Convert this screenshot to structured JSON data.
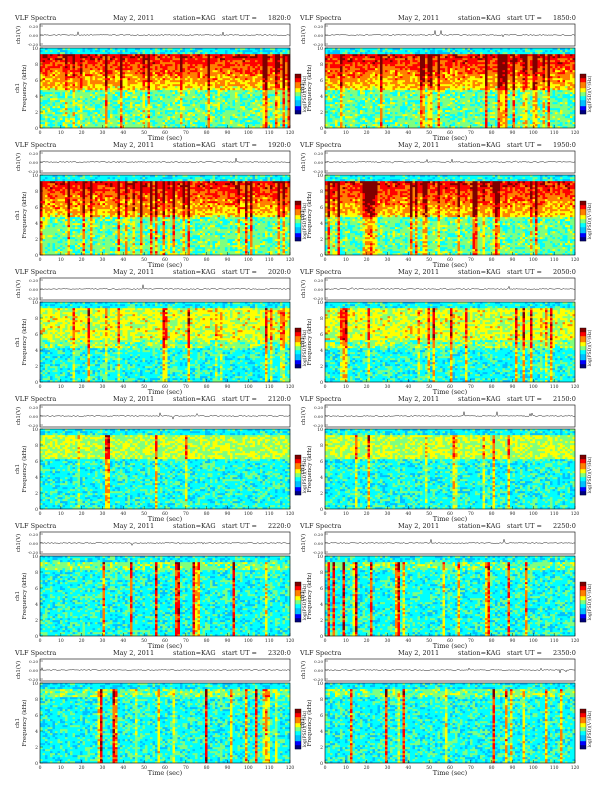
{
  "panel_label": "VLF Spectra",
  "date": "May 2, 2011",
  "station": "station=KAG",
  "start_prefix": "start UT =",
  "ch_label": "ch1(V)",
  "ytitle_top": "ch1",
  "ytitle_bottom": "Frequency (kHz)",
  "xlabel": "Time (sec)",
  "colorbar_label": "log(PSD)(V²/Hz)",
  "amp_ticks": [
    "0.20",
    "0.00",
    "-0.20"
  ],
  "freq_ticks": [
    "0",
    "2",
    "4",
    "6",
    "8",
    "10"
  ],
  "time_ticks": [
    "0",
    "10",
    "20",
    "30",
    "40",
    "50",
    "60",
    "70",
    "80",
    "90",
    "100",
    "110",
    "120"
  ],
  "colormap": [
    "#00007f",
    "#0000ff",
    "#00bfff",
    "#00ffff",
    "#7fff7f",
    "#ffff00",
    "#ff7f00",
    "#ff0000",
    "#7f0000"
  ],
  "chart_data": [
    {
      "type": "heatmap",
      "start_ut": "1820:0",
      "xlim": [
        0,
        120
      ],
      "ylim": [
        0,
        10
      ],
      "ylim_amp": [
        -0.2,
        0.2
      ],
      "activity": "high"
    },
    {
      "type": "heatmap",
      "start_ut": "1850:0",
      "xlim": [
        0,
        120
      ],
      "ylim": [
        0,
        10
      ],
      "ylim_amp": [
        -0.2,
        0.2
      ],
      "activity": "high"
    },
    {
      "type": "heatmap",
      "start_ut": "1920:0",
      "xlim": [
        0,
        120
      ],
      "ylim": [
        0,
        10
      ],
      "ylim_amp": [
        -0.2,
        0.2
      ],
      "activity": "high"
    },
    {
      "type": "heatmap",
      "start_ut": "1950:0",
      "xlim": [
        0,
        120
      ],
      "ylim": [
        0,
        10
      ],
      "ylim_amp": [
        -0.2,
        0.2
      ],
      "activity": "high"
    },
    {
      "type": "heatmap",
      "start_ut": "2020:0",
      "xlim": [
        0,
        120
      ],
      "ylim": [
        0,
        10
      ],
      "ylim_amp": [
        -0.2,
        0.2
      ],
      "activity": "medium"
    },
    {
      "type": "heatmap",
      "start_ut": "2050:0",
      "xlim": [
        0,
        120
      ],
      "ylim": [
        0,
        10
      ],
      "ylim_amp": [
        -0.2,
        0.2
      ],
      "activity": "medium"
    },
    {
      "type": "heatmap",
      "start_ut": "2120:0",
      "xlim": [
        0,
        120
      ],
      "ylim": [
        0,
        10
      ],
      "ylim_amp": [
        -0.2,
        0.2
      ],
      "activity": "low"
    },
    {
      "type": "heatmap",
      "start_ut": "2150:0",
      "xlim": [
        0,
        120
      ],
      "ylim": [
        0,
        10
      ],
      "ylim_amp": [
        -0.2,
        0.2
      ],
      "activity": "low"
    },
    {
      "type": "heatmap",
      "start_ut": "2220:0",
      "xlim": [
        0,
        120
      ],
      "ylim": [
        0,
        10
      ],
      "ylim_amp": [
        -0.2,
        0.2
      ],
      "activity": "spiky"
    },
    {
      "type": "heatmap",
      "start_ut": "2250:0",
      "xlim": [
        0,
        120
      ],
      "ylim": [
        0,
        10
      ],
      "ylim_amp": [
        -0.2,
        0.2
      ],
      "activity": "spiky"
    },
    {
      "type": "heatmap",
      "start_ut": "2320:0",
      "xlim": [
        0,
        120
      ],
      "ylim": [
        0,
        10
      ],
      "ylim_amp": [
        -0.2,
        0.2
      ],
      "activity": "spiky"
    },
    {
      "type": "heatmap",
      "start_ut": "2350:0",
      "xlim": [
        0,
        120
      ],
      "ylim": [
        0,
        10
      ],
      "ylim_amp": [
        -0.2,
        0.2
      ],
      "activity": "spiky"
    }
  ]
}
